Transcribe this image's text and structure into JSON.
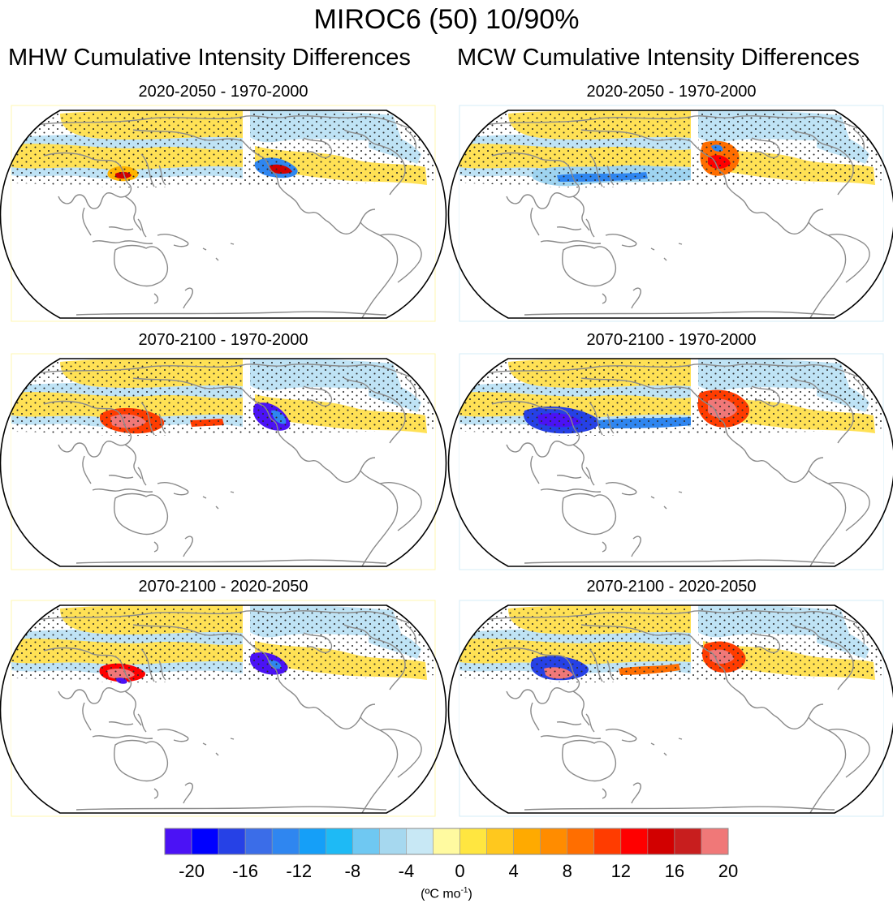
{
  "figure": {
    "title": "MIROC6 (50) 10/90%",
    "columns": [
      "MHW Cumulative Intensity Differences",
      "MCW Cumulative Intensity Differences"
    ],
    "panels": [
      {
        "title": "2020-2050 - 1970-2000",
        "variable": "MHW"
      },
      {
        "title": "2020-2050 - 1970-2000",
        "variable": "MCW"
      },
      {
        "title": "2070-2100 - 1970-2000",
        "variable": "MHW"
      },
      {
        "title": "2070-2100 - 1970-2000",
        "variable": "MCW"
      },
      {
        "title": "2070-2100 - 2020-2050",
        "variable": "MHW"
      },
      {
        "title": "2070-2100 - 2020-2050",
        "variable": "MCW"
      }
    ]
  },
  "colorbar": {
    "units": "(ºC mo",
    "units_sup": "-1",
    "units_close": ")",
    "tick_labels": [
      "-20",
      "-16",
      "-12",
      "-8",
      "-4",
      "0",
      "4",
      "8",
      "12",
      "16",
      "20"
    ],
    "colors": [
      "#4b12f5",
      "#0000ff",
      "#2641e6",
      "#3b6de8",
      "#2f86f0",
      "#159ff8",
      "#1ebaf5",
      "#6fc8f2",
      "#a6d8ef",
      "#c8e8f5",
      "#fffaa0",
      "#ffe640",
      "#ffc81e",
      "#ffaa00",
      "#ff8c00",
      "#ff6e00",
      "#ff3c00",
      "#ff0000",
      "#d20000",
      "#c81e1e",
      "#f07878"
    ]
  }
}
